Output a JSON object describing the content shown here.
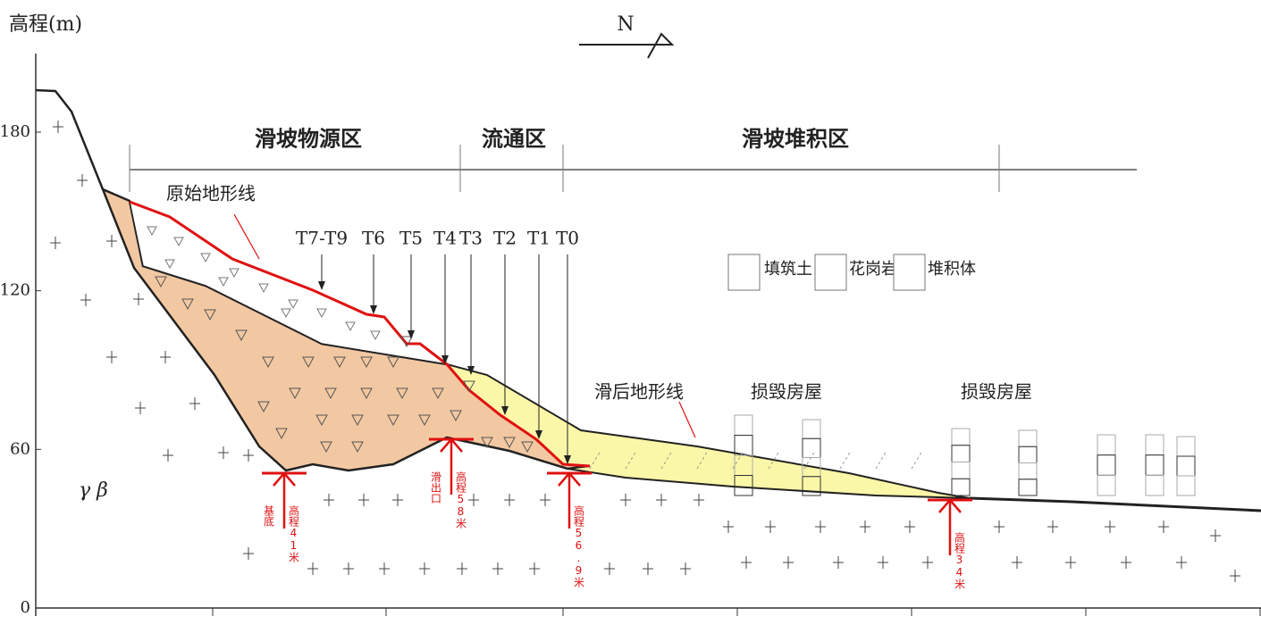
{
  "axis": {
    "label": "高程(m)",
    "ticks": [
      0,
      60,
      120,
      180
    ]
  },
  "compass": "N",
  "zones": [
    "滑坡物源区",
    "流通区",
    "滑坡堆积区"
  ],
  "labels": {
    "original_line": "原始地形线",
    "post_line": "滑后地形线",
    "houses": [
      "损毁房屋",
      "损毁房屋"
    ],
    "rock": "γ β"
  },
  "monitor_points": [
    "T7-T9",
    "T6",
    "T5",
    "T4",
    "T3",
    "T2",
    "T1",
    "T0"
  ],
  "legend": [
    "填筑土",
    "花岗岩",
    "堆积体"
  ],
  "elevation_markers": [
    {
      "text": "高程41米",
      "note": "基底"
    },
    {
      "text": "高程58米",
      "note": "滑出口"
    },
    {
      "text": "高程56.9米"
    },
    {
      "text": "高程34米"
    }
  ]
}
